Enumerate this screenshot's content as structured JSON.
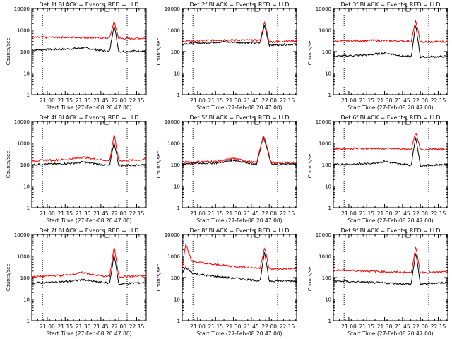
{
  "colors": {
    "events": "#000000",
    "lld": "#ff0000",
    "flare_marker": "#000000",
    "background": "#ffffff"
  },
  "chart_data": [
    {
      "type": "line",
      "title": "Det 1f BLACK = Events, RED = LLD",
      "xlabel": "Start Time (27-Feb-08 20:47:00)",
      "ylabel": "Counts/sec",
      "yscale": "log",
      "ylim": [
        1,
        10000
      ],
      "xlim": [
        "20:47",
        "22:23"
      ],
      "x_ticks": [
        "21:00",
        "21:15",
        "21:30",
        "21:45",
        "22:00",
        "22:15"
      ],
      "y_ticks": [
        "1",
        "10",
        "100",
        "1000",
        "10000"
      ],
      "dotted_vlines": [
        "20:56",
        "22:07"
      ],
      "grid": false,
      "series": [
        {
          "name": "Events",
          "color": "#000000",
          "values": [
            [
              0,
              120
            ],
            [
              0.3,
              130
            ],
            [
              0.45,
              150
            ],
            [
              0.55,
              125
            ],
            [
              0.68,
              100
            ],
            [
              0.72,
              1800
            ],
            [
              0.76,
              100
            ],
            [
              1,
              110
            ]
          ]
        },
        {
          "name": "LLD",
          "color": "#ff0000",
          "values": [
            [
              0,
              450
            ],
            [
              0.3,
              460
            ],
            [
              0.68,
              430
            ],
            [
              0.72,
              2500
            ],
            [
              0.76,
              400
            ],
            [
              1,
              420
            ]
          ]
        }
      ]
    },
    {
      "type": "line",
      "title": "Det 2f BLACK = Events, RED = LLD",
      "xlabel": "Start Time (27-Feb-08 20:47:00)",
      "ylabel": "Counts/sec",
      "yscale": "log",
      "ylim": [
        1,
        10000
      ],
      "xlim": [
        "20:47",
        "22:23"
      ],
      "x_ticks": [
        "21:00",
        "21:15",
        "21:30",
        "21:45",
        "22:00",
        "22:15"
      ],
      "y_ticks": [
        "1",
        "10",
        "100",
        "1000",
        "10000"
      ],
      "dotted_vlines": [
        "20:56",
        "22:07"
      ],
      "grid": false,
      "series": [
        {
          "name": "Events",
          "color": "#000000",
          "values": [
            [
              0,
              230
            ],
            [
              0.35,
              280
            ],
            [
              0.68,
              250
            ],
            [
              0.72,
              1800
            ],
            [
              0.76,
              200
            ],
            [
              1,
              220
            ]
          ]
        },
        {
          "name": "LLD",
          "color": "#ff0000",
          "values": [
            [
              0,
              300
            ],
            [
              0.35,
              350
            ],
            [
              0.68,
              330
            ],
            [
              0.72,
              2300
            ],
            [
              0.76,
              280
            ],
            [
              1,
              320
            ]
          ]
        }
      ]
    },
    {
      "type": "line",
      "title": "Det 3f BLACK = Events, RED = LLD",
      "xlabel": "Start Time (27-Feb-08 20:47:00)",
      "ylabel": "Counts/sec",
      "yscale": "log",
      "ylim": [
        1,
        10000
      ],
      "xlim": [
        "20:47",
        "22:23"
      ],
      "x_ticks": [
        "21:00",
        "21:15",
        "21:30",
        "21:45",
        "22:00",
        "22:15"
      ],
      "y_ticks": [
        "1",
        "10",
        "100",
        "1000",
        "10000"
      ],
      "dotted_vlines": [
        "20:56",
        "22:07"
      ],
      "grid": false,
      "series": [
        {
          "name": "Events",
          "color": "#000000",
          "values": [
            [
              0,
              60
            ],
            [
              0.3,
              70
            ],
            [
              0.45,
              85
            ],
            [
              0.55,
              70
            ],
            [
              0.68,
              55
            ],
            [
              0.72,
              1800
            ],
            [
              0.76,
              55
            ],
            [
              1,
              60
            ]
          ]
        },
        {
          "name": "LLD",
          "color": "#ff0000",
          "values": [
            [
              0,
              300
            ],
            [
              0.35,
              330
            ],
            [
              0.68,
              300
            ],
            [
              0.72,
              2800
            ],
            [
              0.76,
              280
            ],
            [
              1,
              290
            ]
          ]
        }
      ]
    },
    {
      "type": "line",
      "title": "Det 4f BLACK = Events, RED = LLD",
      "xlabel": "Start Time (27-Feb-08 20:47:00)",
      "ylabel": "Counts/sec",
      "yscale": "log",
      "ylim": [
        1,
        10000
      ],
      "xlim": [
        "20:47",
        "22:23"
      ],
      "x_ticks": [
        "21:00",
        "21:15",
        "21:30",
        "21:45",
        "22:00",
        "22:15"
      ],
      "y_ticks": [
        "1",
        "10",
        "100",
        "1000",
        "10000"
      ],
      "dotted_vlines": [
        "20:56",
        "22:07"
      ],
      "grid": false,
      "series": [
        {
          "name": "Events",
          "color": "#000000",
          "values": [
            [
              0,
              100
            ],
            [
              0.3,
              110
            ],
            [
              0.45,
              130
            ],
            [
              0.55,
              110
            ],
            [
              0.68,
              90
            ],
            [
              0.72,
              1100
            ],
            [
              0.76,
              90
            ],
            [
              1,
              100
            ]
          ]
        },
        {
          "name": "LLD",
          "color": "#ff0000",
          "values": [
            [
              0,
              150
            ],
            [
              0.3,
              170
            ],
            [
              0.45,
              220
            ],
            [
              0.55,
              180
            ],
            [
              0.68,
              150
            ],
            [
              0.72,
              2500
            ],
            [
              0.76,
              150
            ],
            [
              1,
              170
            ]
          ]
        }
      ]
    },
    {
      "type": "line",
      "title": "Det 5f BLACK = Events, RED = LLD",
      "xlabel": "Start Time (27-Feb-08 20:47:00)",
      "ylabel": "Counts/sec",
      "yscale": "log",
      "ylim": [
        1,
        10000
      ],
      "xlim": [
        "20:47",
        "22:23"
      ],
      "x_ticks": [
        "21:00",
        "21:15",
        "21:30",
        "21:45",
        "22:00",
        "22:15"
      ],
      "y_ticks": [
        "1",
        "10",
        "100",
        "1000",
        "10000"
      ],
      "dotted_vlines": [
        "20:56",
        "22:07"
      ],
      "grid": false,
      "series": [
        {
          "name": "Events",
          "color": "#000000",
          "values": [
            [
              0,
              110
            ],
            [
              0.3,
              120
            ],
            [
              0.45,
              160
            ],
            [
              0.55,
              130
            ],
            [
              0.65,
              100
            ],
            [
              0.71,
              2000
            ],
            [
              0.78,
              100
            ],
            [
              1,
              110
            ]
          ]
        },
        {
          "name": "LLD",
          "color": "#ff0000",
          "values": [
            [
              0,
              130
            ],
            [
              0.3,
              140
            ],
            [
              0.45,
              190
            ],
            [
              0.55,
              150
            ],
            [
              0.65,
              120
            ],
            [
              0.71,
              2400
            ],
            [
              0.78,
              120
            ],
            [
              1,
              130
            ]
          ]
        }
      ]
    },
    {
      "type": "line",
      "title": "Det 6f BLACK = Events, RED = LLD",
      "xlabel": "Start Time (27-Feb-08 20:47:00)",
      "ylabel": "Counts/sec",
      "yscale": "log",
      "ylim": [
        1,
        10000
      ],
      "xlim": [
        "20:47",
        "22:23"
      ],
      "x_ticks": [
        "21:00",
        "21:15",
        "21:30",
        "21:45",
        "22:00",
        "22:15"
      ],
      "y_ticks": [
        "1",
        "10",
        "100",
        "1000",
        "10000"
      ],
      "dotted_vlines": [
        "20:56",
        "22:07"
      ],
      "grid": false,
      "series": [
        {
          "name": "Events",
          "color": "#000000",
          "values": [
            [
              0,
              100
            ],
            [
              0.3,
              110
            ],
            [
              0.45,
              140
            ],
            [
              0.55,
              110
            ],
            [
              0.68,
              95
            ],
            [
              0.72,
              2000
            ],
            [
              0.76,
              90
            ],
            [
              1,
              100
            ]
          ]
        },
        {
          "name": "LLD",
          "color": "#ff0000",
          "values": [
            [
              0,
              550
            ],
            [
              0.35,
              560
            ],
            [
              0.68,
              520
            ],
            [
              0.72,
              3000
            ],
            [
              0.76,
              500
            ],
            [
              1,
              520
            ]
          ]
        }
      ]
    },
    {
      "type": "line",
      "title": "Det 7f BLACK = Events, RED = LLD",
      "xlabel": "Start Time (27-Feb-08 20:47:00)",
      "ylabel": "Counts/sec",
      "yscale": "log",
      "ylim": [
        1,
        10000
      ],
      "xlim": [
        "20:47",
        "22:23"
      ],
      "x_ticks": [
        "21:00",
        "21:15",
        "21:30",
        "21:45",
        "22:00",
        "22:15"
      ],
      "y_ticks": [
        "1",
        "10",
        "100",
        "1000",
        "10000"
      ],
      "dotted_vlines": [
        "20:56",
        "22:07"
      ],
      "grid": false,
      "series": [
        {
          "name": "Events",
          "color": "#000000",
          "values": [
            [
              0,
              55
            ],
            [
              0.3,
              65
            ],
            [
              0.45,
              80
            ],
            [
              0.55,
              65
            ],
            [
              0.68,
              55
            ],
            [
              0.72,
              1200
            ],
            [
              0.76,
              50
            ],
            [
              1,
              60
            ]
          ]
        },
        {
          "name": "LLD",
          "color": "#ff0000",
          "values": [
            [
              0,
              110
            ],
            [
              0.3,
              130
            ],
            [
              0.45,
              170
            ],
            [
              0.55,
              130
            ],
            [
              0.68,
              110
            ],
            [
              0.72,
              2800
            ],
            [
              0.76,
              110
            ],
            [
              1,
              120
            ]
          ]
        }
      ]
    },
    {
      "type": "line",
      "title": "Det 8f BLACK = Events, RED = LLD",
      "xlabel": "Start Time (27-Feb-08 20:47:00)",
      "ylabel": "Counts/sec",
      "yscale": "log",
      "ylim": [
        1,
        10000
      ],
      "xlim": [
        "20:47",
        "22:23"
      ],
      "x_ticks": [
        "21:00",
        "21:15",
        "21:30",
        "21:45",
        "22:00",
        "22:15"
      ],
      "y_ticks": [
        "1",
        "10",
        "100",
        "1000",
        "10000"
      ],
      "dotted_vlines": [
        "20:56",
        "22:07"
      ],
      "grid": false,
      "series": [
        {
          "name": "Events",
          "color": "#000000",
          "values": [
            [
              0,
              150
            ],
            [
              0.03,
              300
            ],
            [
              0.1,
              150
            ],
            [
              0.3,
              110
            ],
            [
              0.5,
              90
            ],
            [
              0.68,
              70
            ],
            [
              0.72,
              1500
            ],
            [
              0.76,
              70
            ],
            [
              1,
              70
            ]
          ]
        },
        {
          "name": "LLD",
          "color": "#ff0000",
          "values": [
            [
              0,
              300
            ],
            [
              0.03,
              4000
            ],
            [
              0.08,
              600
            ],
            [
              0.2,
              450
            ],
            [
              0.4,
              350
            ],
            [
              0.68,
              270
            ],
            [
              0.72,
              2500
            ],
            [
              0.76,
              250
            ],
            [
              1,
              260
            ]
          ]
        }
      ]
    },
    {
      "type": "line",
      "title": "Det 9f BLACK = Events, RED = LLD",
      "xlabel": "Start Time (27-Feb-08 20:47:00)",
      "ylabel": "Counts/sec",
      "yscale": "log",
      "ylim": [
        1,
        10000
      ],
      "xlim": [
        "20:47",
        "22:23"
      ],
      "x_ticks": [
        "21:00",
        "21:15",
        "21:30",
        "21:45",
        "22:00",
        "22:15"
      ],
      "y_ticks": [
        "1",
        "10",
        "100",
        "1000",
        "10000"
      ],
      "dotted_vlines": [
        "20:56",
        "22:07"
      ],
      "grid": false,
      "series": [
        {
          "name": "Events",
          "color": "#000000",
          "values": [
            [
              0,
              70
            ],
            [
              0.3,
              60
            ],
            [
              0.5,
              55
            ],
            [
              0.68,
              50
            ],
            [
              0.72,
              1500
            ],
            [
              0.76,
              50
            ],
            [
              1,
              60
            ]
          ]
        },
        {
          "name": "LLD",
          "color": "#ff0000",
          "values": [
            [
              0,
              220
            ],
            [
              0.3,
              200
            ],
            [
              0.5,
              180
            ],
            [
              0.68,
              170
            ],
            [
              0.72,
              2600
            ],
            [
              0.76,
              170
            ],
            [
              1,
              180
            ]
          ]
        }
      ]
    }
  ]
}
